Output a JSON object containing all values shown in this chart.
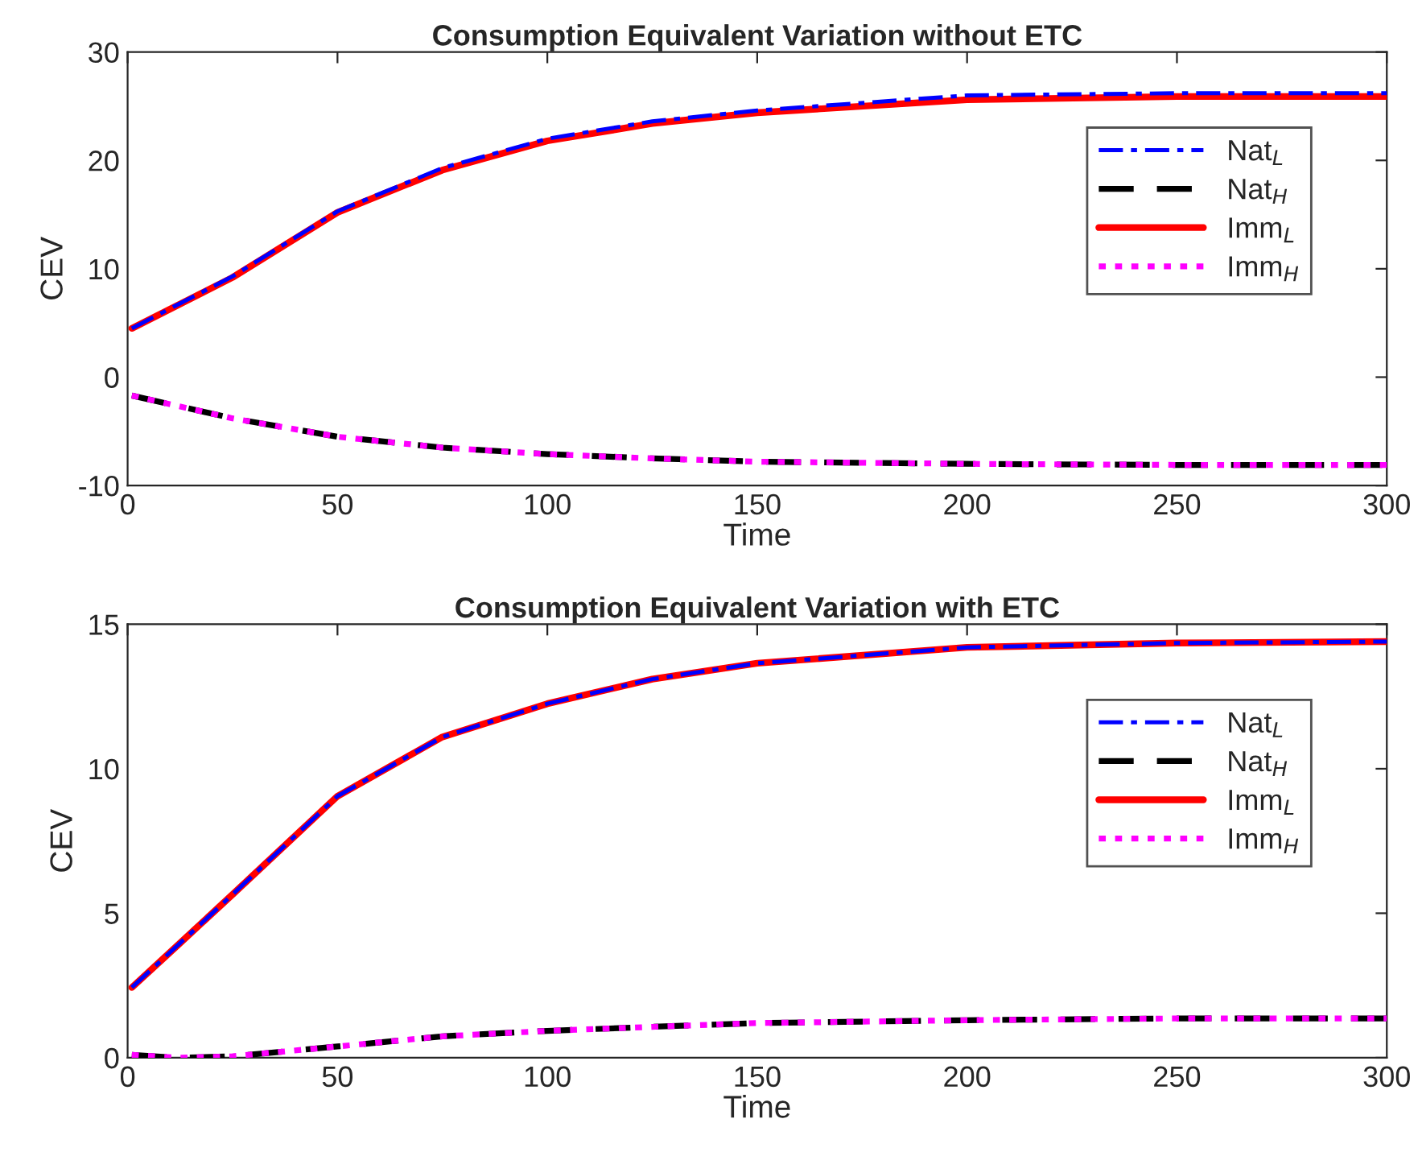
{
  "chart_data": [
    {
      "type": "line",
      "title": "Consumption Equivalent Variation without ETC",
      "xlabel": "Time",
      "ylabel": "CEV",
      "x": [
        1,
        25,
        50,
        75,
        100,
        125,
        150,
        200,
        250,
        300
      ],
      "xlim": [
        0,
        300
      ],
      "xticks": [
        0,
        50,
        100,
        150,
        200,
        250,
        300
      ],
      "ylim": [
        -10,
        30
      ],
      "yticks": [
        -10,
        0,
        10,
        20,
        30
      ],
      "grid": false,
      "legend": "top right",
      "marker": "none",
      "series": [
        {
          "name": "Nat$_{L}$",
          "color": "#0000ff",
          "line_style": "dashdot",
          "values": [
            4.5,
            9.3,
            15.3,
            19.3,
            22.0,
            23.6,
            24.6,
            26.0,
            26.2,
            26.2
          ]
        },
        {
          "name": "Nat$_{H}$",
          "color": "#000000",
          "line_style": "dashed",
          "values": [
            -1.7,
            -3.8,
            -5.5,
            -6.5,
            -7.1,
            -7.5,
            -7.8,
            -8.0,
            -8.1,
            -8.1
          ]
        },
        {
          "name": "Imm$_{L}$",
          "color": "#ff0000",
          "line_style": "solid",
          "values": [
            4.5,
            9.2,
            15.2,
            19.1,
            21.8,
            23.4,
            24.4,
            25.6,
            25.9,
            25.9
          ]
        },
        {
          "name": "Imm$_{H}$",
          "color": "#ff00ff",
          "line_style": "dotted",
          "values": [
            -1.7,
            -3.8,
            -5.5,
            -6.5,
            -7.1,
            -7.5,
            -7.8,
            -8.0,
            -8.1,
            -8.1
          ]
        }
      ]
    },
    {
      "type": "line",
      "title": "Consumption Equivalent Variation with ETC",
      "xlabel": "Time",
      "ylabel": "CEV",
      "x": [
        1,
        12,
        25,
        50,
        75,
        100,
        125,
        150,
        200,
        250,
        300
      ],
      "xlim": [
        0,
        300
      ],
      "xticks": [
        0,
        50,
        100,
        150,
        200,
        250,
        300
      ],
      "ylim": [
        0,
        15
      ],
      "yticks": [
        0,
        5,
        10,
        15
      ],
      "grid": false,
      "legend": "top right",
      "marker": "none",
      "series": [
        {
          "name": "Nat$_{L}$",
          "color": "#0000ff",
          "line_style": "dashdot",
          "values": [
            2.43,
            3.9,
            5.65,
            9.05,
            11.1,
            12.25,
            13.1,
            13.65,
            14.2,
            14.35,
            14.4
          ]
        },
        {
          "name": "Nat$_{H}$",
          "color": "#000000",
          "line_style": "dashed",
          "values": [
            0.1,
            0.0,
            0.05,
            0.39,
            0.74,
            0.93,
            1.07,
            1.2,
            1.3,
            1.36,
            1.36
          ]
        },
        {
          "name": "Imm$_{L}$",
          "color": "#ff0000",
          "line_style": "solid",
          "values": [
            2.43,
            3.9,
            5.65,
            9.05,
            11.1,
            12.25,
            13.1,
            13.65,
            14.2,
            14.35,
            14.4
          ]
        },
        {
          "name": "Imm$_{H}$",
          "color": "#ff00ff",
          "line_style": "dotted",
          "values": [
            0.1,
            0.0,
            0.05,
            0.39,
            0.74,
            0.93,
            1.07,
            1.2,
            1.3,
            1.36,
            1.36
          ]
        }
      ]
    }
  ]
}
